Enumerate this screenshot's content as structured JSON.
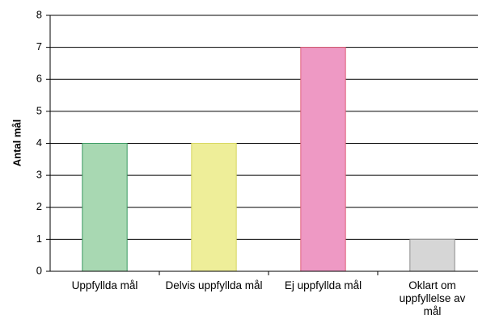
{
  "chart_data": {
    "type": "bar",
    "y_label": "Antal mål",
    "categories": [
      "Uppfyllda mål",
      "Delvis uppfyllda mål",
      "Ej uppfyllda mål",
      "Oklart om uppfyllelse av mål"
    ],
    "values": [
      4,
      4,
      7,
      1
    ],
    "colors": [
      "#a8d8b2",
      "#eeee99",
      "#ee99c4",
      "#d6d6d6"
    ],
    "edge_colors": [
      "#3a9a62",
      "#d8d860",
      "#e0607a",
      "#8a8a8a"
    ],
    "ylim": [
      0,
      8
    ],
    "yticks": [
      0,
      1,
      2,
      3,
      4,
      5,
      6,
      7,
      8
    ],
    "grid": true
  }
}
